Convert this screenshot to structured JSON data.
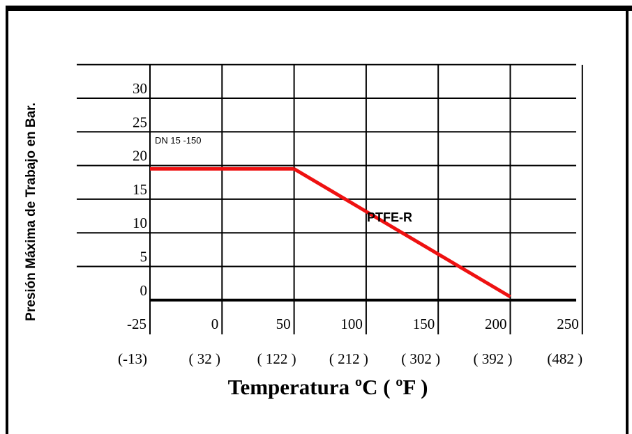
{
  "chart_data": {
    "type": "line",
    "title": "",
    "ylabel": "Presión Máxima de Trabajo en Bar.",
    "xlabel": "Temperatura ºC  ( ºF )",
    "x_ticks_c": [
      "-25",
      "0",
      "50",
      "100",
      "150",
      "200",
      "250"
    ],
    "x_ticks_f": [
      "(-13)",
      "( 32 )",
      "( 122 )",
      "( 212 )",
      "( 302 )",
      "( 392 )",
      "(482 )"
    ],
    "y_ticks": [
      "30",
      "25",
      "20",
      "15",
      "10",
      "5",
      "0"
    ],
    "xlim": [
      -25,
      250
    ],
    "ylim": [
      -1,
      34
    ],
    "grid": true,
    "series": [
      {
        "name": "PTFE-R",
        "color": "#ee1111",
        "x": [
          -25,
          50,
          200
        ],
        "y": [
          19.5,
          19.5,
          0.5
        ]
      }
    ],
    "annotations": [
      {
        "text": "DN 15 -150"
      }
    ]
  }
}
